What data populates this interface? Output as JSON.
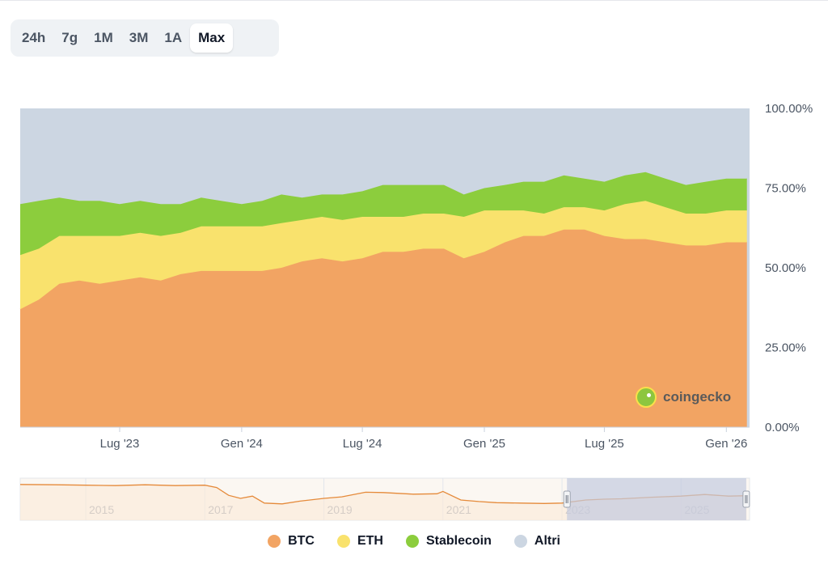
{
  "range_selector": {
    "options": [
      "24h",
      "7g",
      "1M",
      "3M",
      "1A",
      "Max"
    ],
    "active": "Max"
  },
  "watermark": {
    "text": "coingecko",
    "icon": "coingecko-gecko-icon"
  },
  "legend": [
    {
      "label": "BTC",
      "color": "#f2a463"
    },
    {
      "label": "ETH",
      "color": "#f9e26d"
    },
    {
      "label": "Stablecoin",
      "color": "#8ccd3d"
    },
    {
      "label": "Altri",
      "color": "#ccd6e2"
    }
  ],
  "navigator": {
    "year_labels": [
      "2015",
      "2017",
      "2019",
      "2021",
      "2023",
      "2025"
    ],
    "line_color": "#e58a3a",
    "selection_color": "#c3cbe0",
    "btc_dominance": [
      [
        2013.9,
        88
      ],
      [
        2014.5,
        87
      ],
      [
        2015.0,
        86
      ],
      [
        2015.5,
        85
      ],
      [
        2016.0,
        87
      ],
      [
        2016.5,
        85
      ],
      [
        2017.0,
        86
      ],
      [
        2017.2,
        80
      ],
      [
        2017.4,
        60
      ],
      [
        2017.6,
        52
      ],
      [
        2017.8,
        58
      ],
      [
        2018.0,
        40
      ],
      [
        2018.3,
        38
      ],
      [
        2018.6,
        45
      ],
      [
        2019.0,
        52
      ],
      [
        2019.3,
        56
      ],
      [
        2019.7,
        68
      ],
      [
        2020.0,
        67
      ],
      [
        2020.5,
        63
      ],
      [
        2020.9,
        64
      ],
      [
        2021.0,
        70
      ],
      [
        2021.3,
        48
      ],
      [
        2021.6,
        44
      ],
      [
        2021.9,
        41
      ],
      [
        2022.3,
        40
      ],
      [
        2022.7,
        39
      ],
      [
        2023.0,
        40
      ],
      [
        2023.4,
        48
      ],
      [
        2023.7,
        50
      ],
      [
        2024.0,
        51
      ],
      [
        2024.5,
        55
      ],
      [
        2025.0,
        58
      ],
      [
        2025.4,
        62
      ],
      [
        2025.8,
        58
      ],
      [
        2026.1,
        59
      ]
    ]
  },
  "chart_data": {
    "type": "area",
    "stacked": true,
    "normalized": true,
    "x_ticks": [
      "Lug '23",
      "Gen '24",
      "Lug '24",
      "Gen '25",
      "Lug '25",
      "Gen '26"
    ],
    "y_ticks": [
      "0.00%",
      "25.00%",
      "50.00%",
      "75.00%",
      "100.00%"
    ],
    "ylim": [
      0,
      100
    ],
    "xlim": [
      "2023-02-01",
      "2026-02-05"
    ],
    "legend_position": "bottom",
    "grid": false,
    "x": [
      "2023-02-01",
      "2023-03-01",
      "2023-04-01",
      "2023-05-01",
      "2023-06-01",
      "2023-07-01",
      "2023-08-01",
      "2023-09-01",
      "2023-10-01",
      "2023-11-01",
      "2023-12-01",
      "2024-01-01",
      "2024-02-01",
      "2024-03-01",
      "2024-04-01",
      "2024-05-01",
      "2024-06-01",
      "2024-07-01",
      "2024-08-01",
      "2024-09-01",
      "2024-10-01",
      "2024-11-01",
      "2024-12-01",
      "2025-01-01",
      "2025-02-01",
      "2025-03-01",
      "2025-04-01",
      "2025-05-01",
      "2025-06-01",
      "2025-07-01",
      "2025-08-01",
      "2025-09-01",
      "2025-10-01",
      "2025-11-01",
      "2025-12-01",
      "2026-01-01",
      "2026-02-01"
    ],
    "series": [
      {
        "name": "BTC",
        "values": [
          37,
          40,
          45,
          46,
          45,
          46,
          47,
          46,
          48,
          49,
          49,
          49,
          49,
          50,
          52,
          53,
          52,
          53,
          55,
          55,
          56,
          56,
          53,
          55,
          58,
          60,
          60,
          62,
          62,
          60,
          59,
          59,
          58,
          57,
          57,
          58,
          58
        ]
      },
      {
        "name": "ETH",
        "values": [
          17,
          16,
          15,
          14,
          15,
          14,
          14,
          14,
          13,
          14,
          14,
          14,
          14,
          14,
          13,
          13,
          13,
          13,
          11,
          11,
          11,
          11,
          13,
          13,
          10,
          8,
          7,
          7,
          7,
          8,
          11,
          12,
          11,
          10,
          10,
          10,
          10
        ]
      },
      {
        "name": "Stablecoin",
        "values": [
          16,
          15,
          12,
          11,
          11,
          10,
          10,
          10,
          9,
          9,
          8,
          7,
          8,
          9,
          7,
          7,
          8,
          8,
          10,
          10,
          9,
          9,
          7,
          7,
          8,
          9,
          10,
          10,
          9,
          9,
          9,
          9,
          9,
          9,
          10,
          10,
          10
        ]
      },
      {
        "name": "Altri",
        "values": [
          30,
          29,
          28,
          29,
          29,
          30,
          29,
          30,
          30,
          28,
          29,
          30,
          29,
          27,
          28,
          27,
          27,
          26,
          24,
          24,
          24,
          24,
          27,
          25,
          24,
          23,
          23,
          21,
          22,
          23,
          21,
          20,
          22,
          24,
          23,
          22,
          22
        ]
      }
    ]
  }
}
